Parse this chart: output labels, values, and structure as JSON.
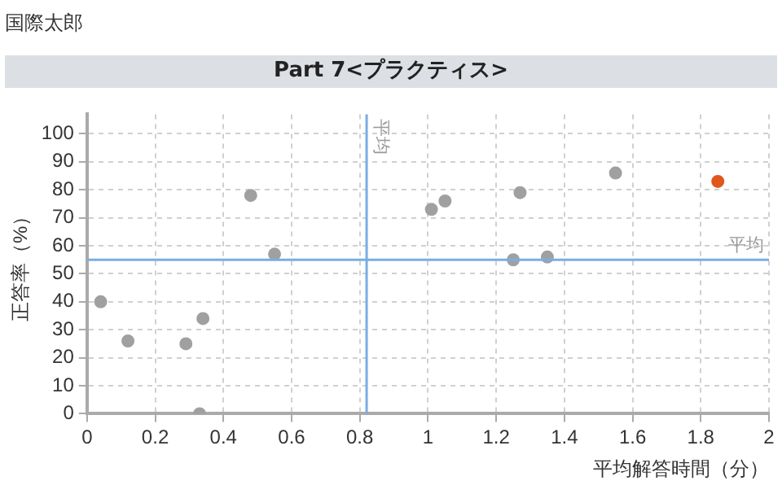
{
  "chart_data": {
    "type": "scatter",
    "title": "Part 7<プラクティス>",
    "annotations": [
      "国際太郎"
    ],
    "xlabel": "平均解答時間（分）",
    "ylabel": "正答率（%）",
    "xlim": [
      0,
      2
    ],
    "xticks": [
      0,
      0.2,
      0.4,
      0.6,
      0.8,
      1,
      1.2,
      1.4,
      1.6,
      1.8,
      2
    ],
    "ylim": [
      0,
      107
    ],
    "yticks": [
      0,
      10,
      20,
      30,
      40,
      50,
      60,
      70,
      80,
      90,
      100
    ],
    "grid": true,
    "legend": false,
    "marker": "circle",
    "series": [
      {
        "color": "#a0a0a0",
        "x": [
          0.04,
          0.12,
          0.29,
          0.34,
          0.33,
          0.48,
          0.55,
          1.01,
          1.05,
          1.27,
          1.25,
          1.35,
          1.55
        ],
        "values": [
          40,
          26,
          25,
          34,
          0,
          78,
          57,
          73,
          76,
          79,
          55,
          56,
          86
        ]
      },
      {
        "color": "#e0561c",
        "x": [
          1.85
        ],
        "values": [
          83
        ]
      }
    ],
    "ref_lines": [
      {
        "axis": "x",
        "value": 0.82,
        "label": "平均",
        "color": "#79aee0"
      },
      {
        "axis": "y",
        "value": 55,
        "label": "平均",
        "color": "#79aee0"
      }
    ]
  }
}
